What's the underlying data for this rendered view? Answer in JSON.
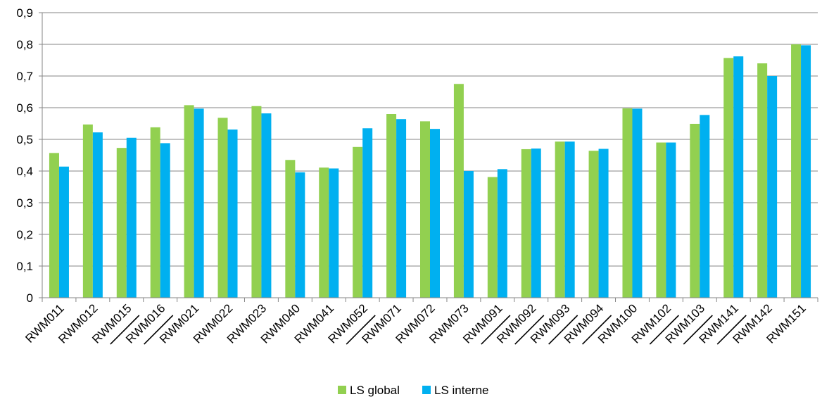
{
  "chart_data": {
    "type": "bar",
    "title": "",
    "xlabel": "",
    "ylabel": "",
    "ylim": [
      0,
      0.9
    ],
    "y_ticks": [
      "0",
      "0,1",
      "0,2",
      "0,3",
      "0,4",
      "0,5",
      "0,6",
      "0,7",
      "0,8",
      "0,9"
    ],
    "grid": true,
    "legend_position": "bottom",
    "categories": [
      "RWM011",
      "RWM012",
      "RWM015",
      "RWM016",
      "RWM021",
      "RWM022",
      "RWM023",
      "RWM040",
      "RWM041",
      "RWM052",
      "RWM071",
      "RWM072",
      "RWM073",
      "RWM091",
      "RWM092",
      "RWM093",
      "RWM094",
      "RWM100",
      "RWM102",
      "RWM103",
      "RWM141",
      "RWM142",
      "RWM151"
    ],
    "series": [
      {
        "name": "LS global",
        "color": "#92d050",
        "values": [
          0.457,
          0.547,
          0.473,
          0.538,
          0.608,
          0.568,
          0.605,
          0.435,
          0.411,
          0.476,
          0.58,
          0.557,
          0.675,
          0.381,
          0.469,
          0.493,
          0.464,
          0.598,
          0.49,
          0.549,
          0.757,
          0.74,
          0.8
        ]
      },
      {
        "name": "LS interne",
        "color": "#00b0f0",
        "values": [
          0.414,
          0.522,
          0.505,
          0.488,
          0.597,
          0.531,
          0.582,
          0.396,
          0.408,
          0.535,
          0.564,
          0.533,
          0.4,
          0.406,
          0.471,
          0.493,
          0.47,
          0.597,
          0.49,
          0.577,
          0.762,
          0.7,
          0.797
        ]
      }
    ],
    "underline_marks": [
      2,
      3,
      9,
      13,
      14,
      15,
      16,
      18,
      19,
      20
    ]
  }
}
